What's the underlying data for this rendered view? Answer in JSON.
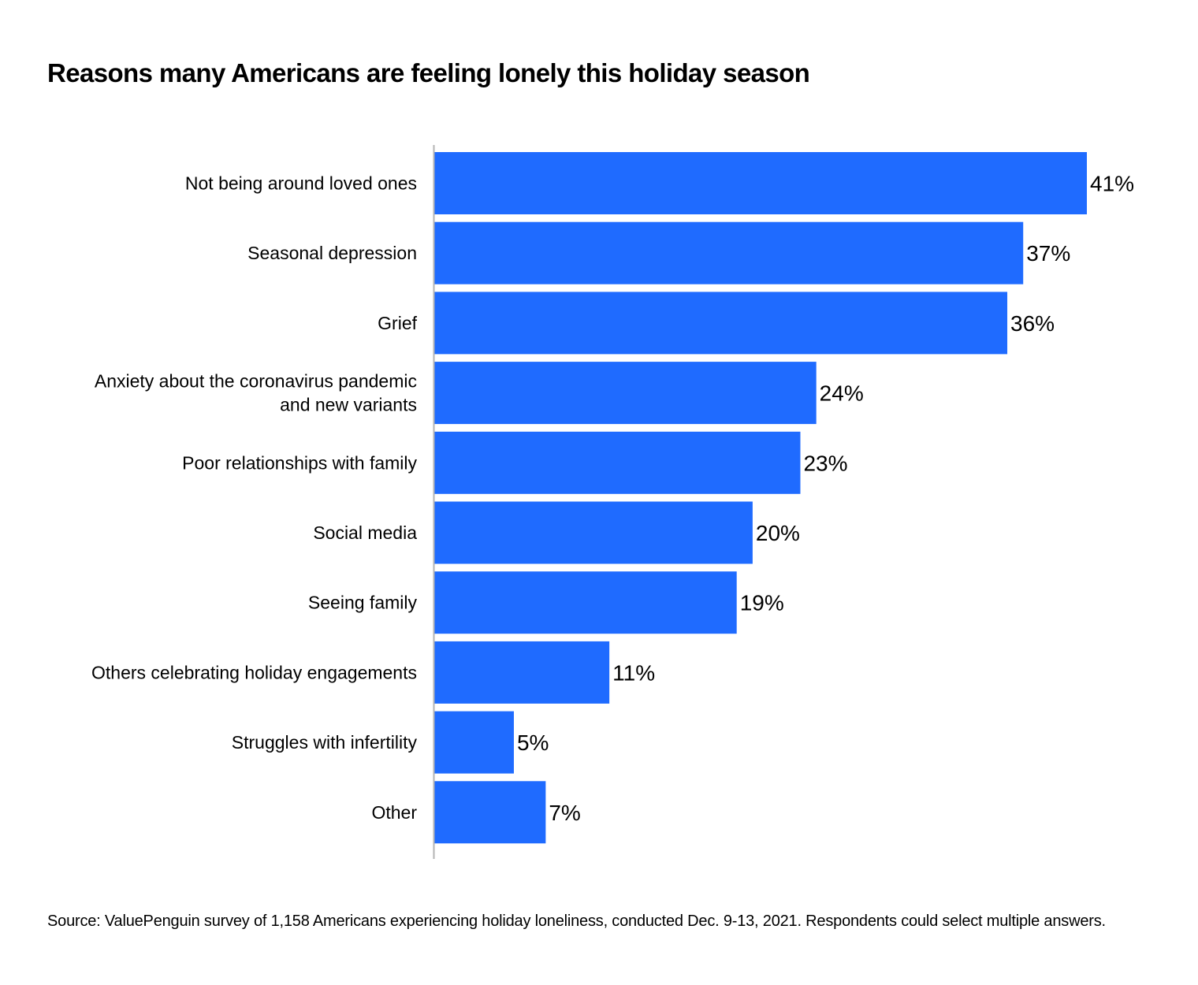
{
  "chart_data": {
    "type": "bar",
    "orientation": "horizontal",
    "title": "Reasons many Americans are feeling lonely this holiday season",
    "categories": [
      [
        "Not being around loved ones"
      ],
      [
        "Seasonal depression"
      ],
      [
        "Grief"
      ],
      [
        "Anxiety about the coronavirus pandemic",
        "and new variants"
      ],
      [
        "Poor relationships with family"
      ],
      [
        "Social media"
      ],
      [
        "Seeing family"
      ],
      [
        "Others celebrating holiday engagements"
      ],
      [
        "Struggles with infertility"
      ],
      [
        "Other"
      ]
    ],
    "values": [
      41,
      37,
      36,
      24,
      23,
      20,
      19,
      11,
      5,
      7
    ],
    "data_labels": [
      "41%",
      "37%",
      "36%",
      "24%",
      "23%",
      "20%",
      "19%",
      "11%",
      "5%",
      "7%"
    ],
    "xlim": [
      0,
      41
    ],
    "grid": false,
    "legend": "none",
    "bar_color": "#1f6bff",
    "axis_color": "#b3b3b3"
  },
  "source": "Source: ValuePenguin survey of 1,158 Americans experiencing holiday loneliness, conducted Dec. 9-13, 2021. Respondents could select multiple answers."
}
